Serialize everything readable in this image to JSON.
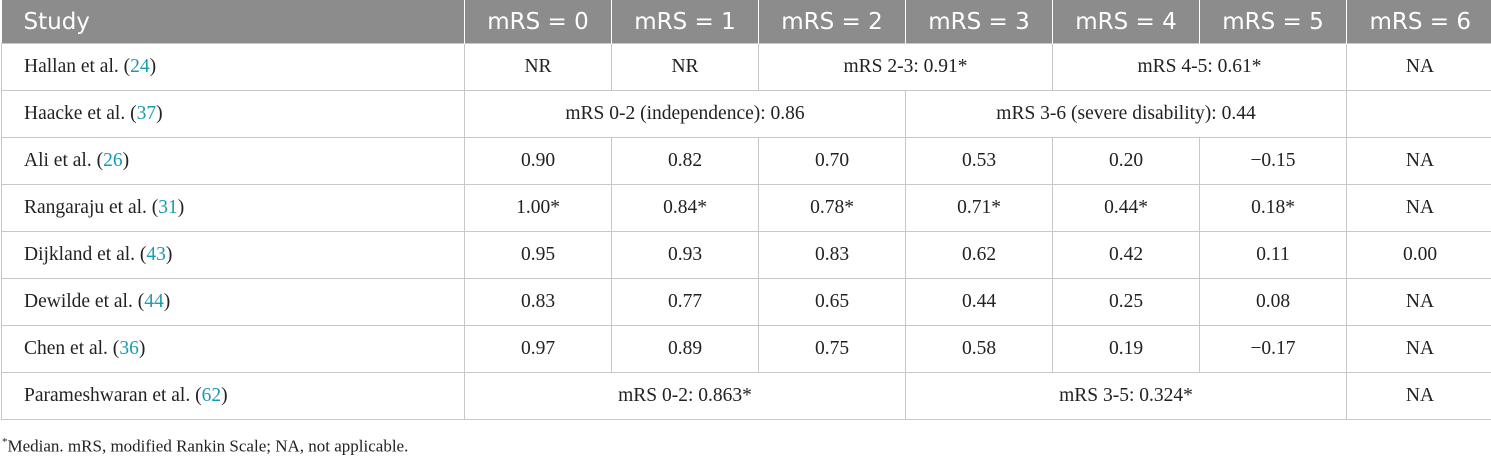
{
  "table": {
    "headers": [
      "Study",
      "mRS = 0",
      "mRS = 1",
      "mRS = 2",
      "mRS = 3",
      "mRS = 4",
      "mRS = 5",
      "mRS = 6"
    ],
    "rows": [
      {
        "author": "Hallan et al. (",
        "ref": "24",
        "close": ")",
        "cells": [
          {
            "text": "NR",
            "span": 1
          },
          {
            "text": "NR",
            "span": 1
          },
          {
            "text": "mRS 2-3: 0.91*",
            "span": 2
          },
          {
            "text": "mRS 4-5: 0.61*",
            "span": 2
          },
          {
            "text": "NA",
            "span": 1
          }
        ]
      },
      {
        "author": "Haacke et al. (",
        "ref": "37",
        "close": ")",
        "cells": [
          {
            "text": "mRS 0-2 (independence): 0.86",
            "span": 3
          },
          {
            "text": "mRS 3-6 (severe disability): 0.44",
            "span": 3
          },
          {
            "text": "",
            "span": 1
          }
        ]
      },
      {
        "author": "Ali et al. (",
        "ref": "26",
        "close": ")",
        "cells": [
          {
            "text": "0.90",
            "span": 1
          },
          {
            "text": "0.82",
            "span": 1
          },
          {
            "text": "0.70",
            "span": 1
          },
          {
            "text": "0.53",
            "span": 1
          },
          {
            "text": "0.20",
            "span": 1
          },
          {
            "text": "−0.15",
            "span": 1
          },
          {
            "text": "NA",
            "span": 1
          }
        ]
      },
      {
        "author": "Rangaraju et al. (",
        "ref": "31",
        "close": ")",
        "cells": [
          {
            "text": "1.00*",
            "span": 1
          },
          {
            "text": "0.84*",
            "span": 1
          },
          {
            "text": "0.78*",
            "span": 1
          },
          {
            "text": "0.71*",
            "span": 1
          },
          {
            "text": "0.44*",
            "span": 1
          },
          {
            "text": "0.18*",
            "span": 1
          },
          {
            "text": "NA",
            "span": 1
          }
        ]
      },
      {
        "author": "Dijkland et al. (",
        "ref": "43",
        "close": ")",
        "cells": [
          {
            "text": "0.95",
            "span": 1
          },
          {
            "text": "0.93",
            "span": 1
          },
          {
            "text": "0.83",
            "span": 1
          },
          {
            "text": "0.62",
            "span": 1
          },
          {
            "text": "0.42",
            "span": 1
          },
          {
            "text": "0.11",
            "span": 1
          },
          {
            "text": "0.00",
            "span": 1
          }
        ]
      },
      {
        "author": "Dewilde et al. (",
        "ref": "44",
        "close": ")",
        "cells": [
          {
            "text": "0.83",
            "span": 1
          },
          {
            "text": "0.77",
            "span": 1
          },
          {
            "text": "0.65",
            "span": 1
          },
          {
            "text": "0.44",
            "span": 1
          },
          {
            "text": "0.25",
            "span": 1
          },
          {
            "text": "0.08",
            "span": 1
          },
          {
            "text": "NA",
            "span": 1
          }
        ]
      },
      {
        "author": "Chen et al. (",
        "ref": "36",
        "close": ")",
        "cells": [
          {
            "text": "0.97",
            "span": 1
          },
          {
            "text": "0.89",
            "span": 1
          },
          {
            "text": "0.75",
            "span": 1
          },
          {
            "text": "0.58",
            "span": 1
          },
          {
            "text": "0.19",
            "span": 1
          },
          {
            "text": "−0.17",
            "span": 1
          },
          {
            "text": "NA",
            "span": 1
          }
        ]
      },
      {
        "author": "Parameshwaran et al. (",
        "ref": "62",
        "close": ")",
        "cells": [
          {
            "text": "mRS 0-2: 0.863*",
            "span": 3
          },
          {
            "text": "mRS 3-5: 0.324*",
            "span": 3
          },
          {
            "text": "NA",
            "span": 1
          }
        ]
      }
    ]
  },
  "footnote": {
    "marker": "*",
    "text": "Median. mRS, modified Rankin Scale; NA, not applicable."
  },
  "colors": {
    "header_bg": "#8c8c8c",
    "header_text": "#ffffff",
    "grid": "#c7c7c7",
    "ref_link": "#1a9bb5"
  }
}
